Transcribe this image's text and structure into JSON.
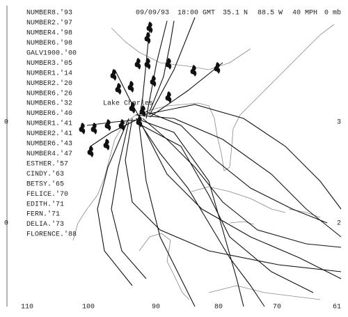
{
  "header": {
    "date": "09/09/93",
    "time": "18:00 GMT",
    "latitude": "35.1 N",
    "longitude": "88.5 W",
    "wind": "40 MPH",
    "pressure": "0 mb"
  },
  "storms": [
    "NUMBER8.'93",
    "NUMBER2.'97",
    "NUMBER4.'98",
    "NUMBER6.'98",
    "GALV1900.'00",
    "NUMBER3.'05",
    "NUMBER1.'14",
    "NUMBER2.'20",
    "NUMBER6.'26",
    "NUMBER6.'32",
    "NUMBER6.'40",
    "NUMBER1.'41",
    "NUMBER2.'41",
    "NUMBER6.'43",
    "NUMBER4.'47",
    "ESTHER.'57",
    "CINDY.'63",
    "BETSY.'65",
    "FELICE.'70",
    "EDITH.'71",
    "FERN.'71",
    "DELIA.'73",
    "FLORENCE.'88"
  ],
  "place": "Lake Charles",
  "longitude_labels": [
    "110",
    "100",
    "90",
    "80",
    "70",
    "61"
  ],
  "left_labels": [
    "0",
    "0"
  ],
  "right_labels": [
    "3",
    "2"
  ]
}
